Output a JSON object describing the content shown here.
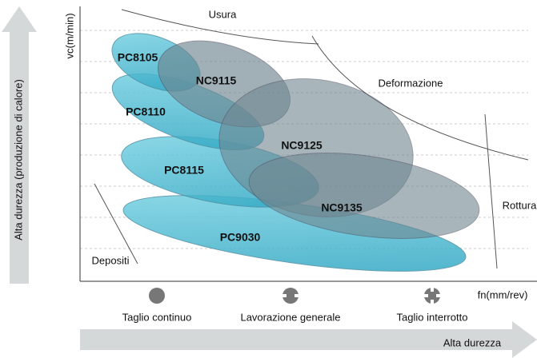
{
  "axes": {
    "y_label": "vc(m/min)",
    "x_label": "fn(mm/rev)"
  },
  "side_arrow": "Alta durezza (produzione di calore)",
  "bottom_arrow": "Alta durezza",
  "regions": [
    "Usura",
    "Deformazione",
    "Rottura",
    "Depositi"
  ],
  "grades": [
    "PC8105",
    "NC9115",
    "PC8110",
    "NC9125",
    "PC8115",
    "NC9135",
    "PC9030"
  ],
  "conditions": [
    "Taglio continuo",
    "Lavorazione generale",
    "Taglio interrotto"
  ]
}
